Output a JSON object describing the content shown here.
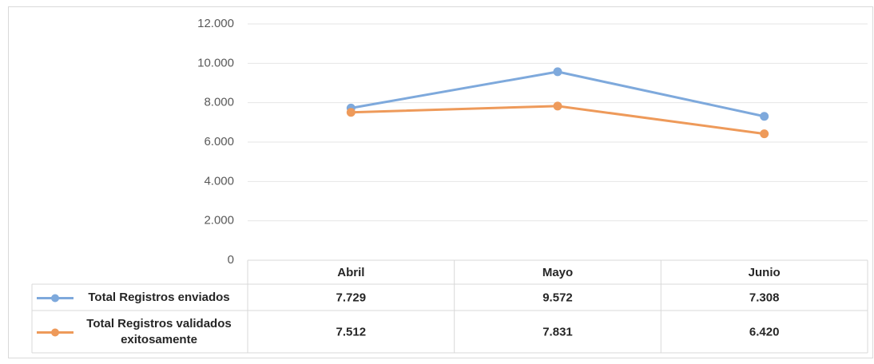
{
  "chart_data": {
    "type": "line",
    "categories": [
      "Abril",
      "Mayo",
      "Junio"
    ],
    "series": [
      {
        "name": "Total Registros enviados",
        "color": "#7ea9dc",
        "values": [
          7729,
          9572,
          7308
        ],
        "value_labels": [
          "7.729",
          "9.572",
          "7.308"
        ]
      },
      {
        "name": "Total Registros validados exitosamente",
        "color": "#ee9a5a",
        "values": [
          7512,
          7831,
          6420
        ],
        "value_labels": [
          "7.512",
          "7.831",
          "6.420"
        ]
      }
    ],
    "ylim": [
      0,
      12000
    ],
    "yticks": [
      0,
      {
        "value": 2000,
        "label": "2.000"
      },
      {
        "value": 4000,
        "label": "4.000"
      },
      {
        "value": 6000,
        "label": "6.000"
      },
      {
        "value": 8000,
        "label": "8.000"
      },
      {
        "value": 10000,
        "label": "10.000"
      },
      {
        "value": 12000,
        "label": "12.000"
      }
    ],
    "grid": true
  }
}
